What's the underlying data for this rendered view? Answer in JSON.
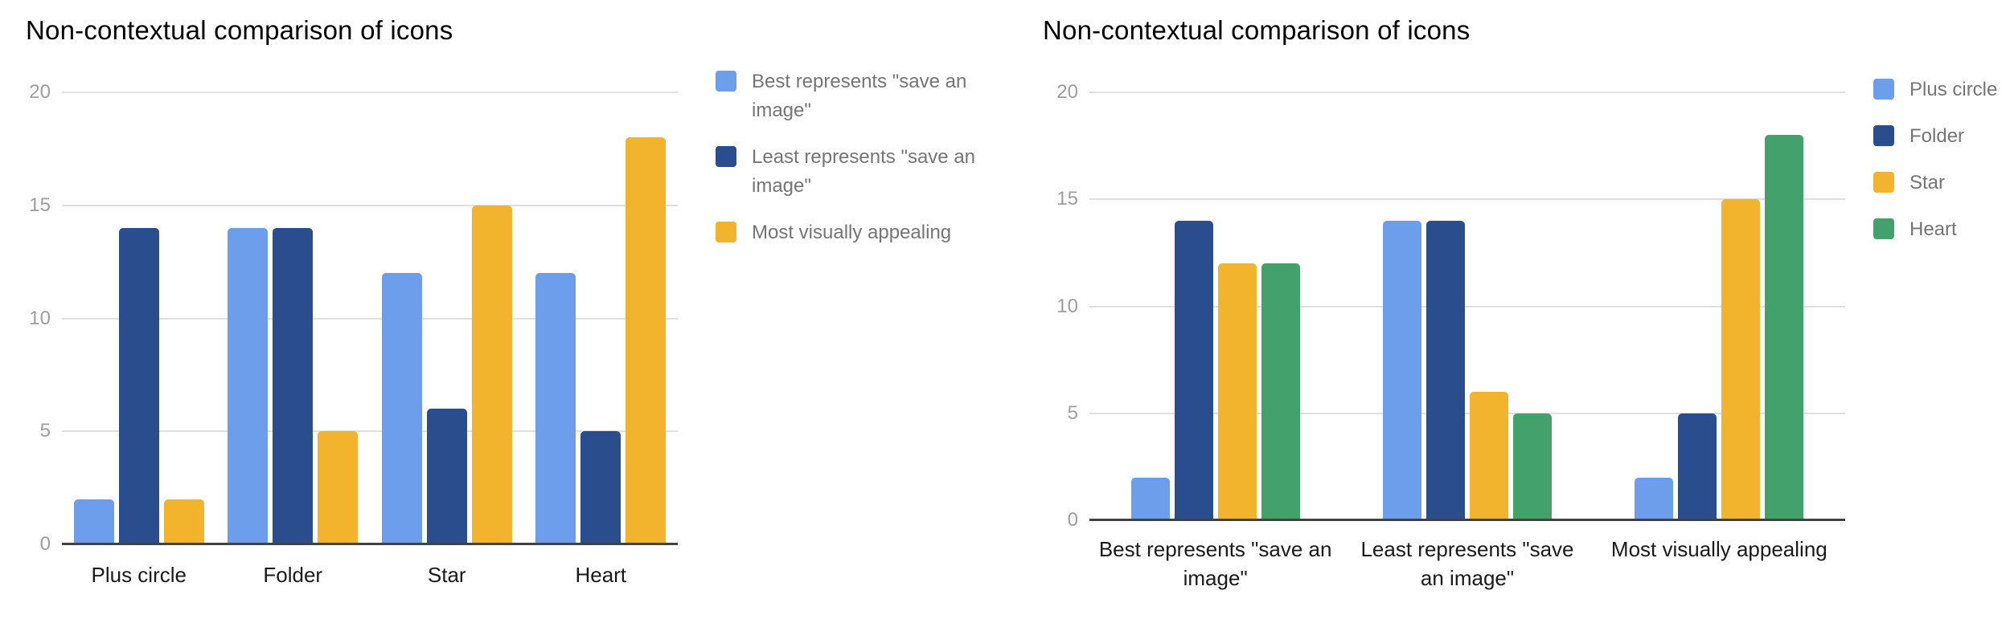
{
  "page": {
    "background": "#ffffff"
  },
  "colors": {
    "grid_line": "#e0e0e0",
    "axis_baseline": "#424242",
    "tick_label": "#9e9e9e",
    "category_label": "#1a1a1a",
    "legend_label": "#757575",
    "title": "#000000",
    "series_blue_light": "#6d9eeb",
    "series_blue_dark": "#2a4d8e",
    "series_yellow": "#f1b42c",
    "series_green": "#43a16b"
  },
  "chart_data": [
    {
      "type": "bar",
      "title": "Non-contextual comparison of icons",
      "xlabel": "",
      "ylabel": "",
      "ylim": [
        0,
        20
      ],
      "yticks": [
        0,
        5,
        10,
        15,
        20
      ],
      "grid": true,
      "legend_position": "right",
      "categories": [
        "Plus circle",
        "Folder",
        "Star",
        "Heart"
      ],
      "series": [
        {
          "name": "Best represents \"save an image\"",
          "color": "#6d9eeb",
          "values": [
            2,
            14,
            12,
            12
          ]
        },
        {
          "name": "Least represents \"save an image\"",
          "color": "#2a4d8e",
          "values": [
            14,
            14,
            6,
            5
          ]
        },
        {
          "name": "Most visually appealing",
          "color": "#f1b42c",
          "values": [
            2,
            5,
            15,
            18
          ]
        }
      ]
    },
    {
      "type": "bar",
      "title": "Non-contextual comparison of icons",
      "xlabel": "",
      "ylabel": "",
      "ylim": [
        0,
        20
      ],
      "yticks": [
        0,
        5,
        10,
        15,
        20
      ],
      "grid": true,
      "legend_position": "right",
      "categories": [
        "Best represents \"save an image\"",
        "Least represents \"save an image\"",
        "Most visually appealing"
      ],
      "series": [
        {
          "name": "Plus circle",
          "color": "#6d9eeb",
          "values": [
            2,
            14,
            2
          ]
        },
        {
          "name": "Folder",
          "color": "#2a4d8e",
          "values": [
            14,
            14,
            5
          ]
        },
        {
          "name": "Star",
          "color": "#f1b42c",
          "values": [
            12,
            6,
            15
          ]
        },
        {
          "name": "Heart",
          "color": "#43a16b",
          "values": [
            12,
            5,
            18
          ]
        }
      ]
    }
  ]
}
